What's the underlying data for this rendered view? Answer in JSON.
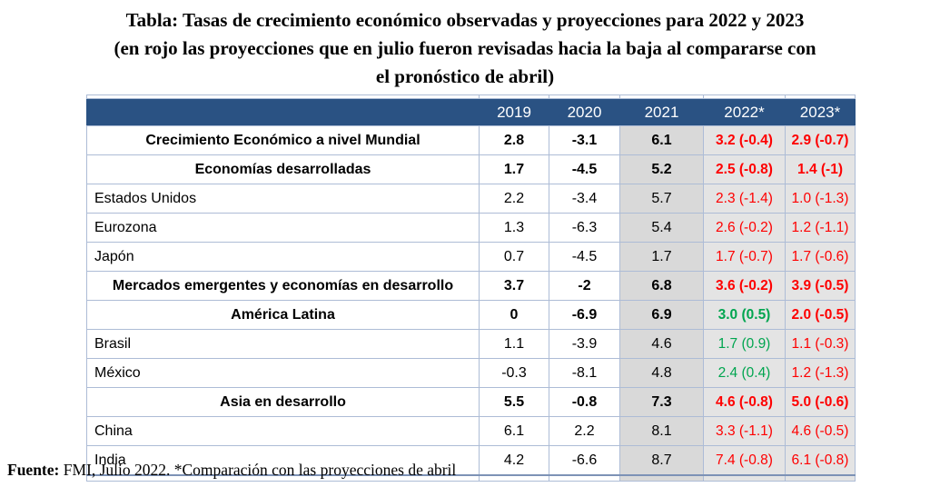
{
  "chart_data": {
    "type": "table",
    "title": "Tabla: Tasas de crecimiento económico observadas y proyecciones para 2022 y 2023 (en rojo las proyecciones que en julio fueron revisadas hacia la baja al compararse con el pronóstico de abril)",
    "title_lines": [
      "Tabla: Tasas de crecimiento económico observadas y proyecciones para 2022 y 2023",
      "(en rojo las proyecciones que en julio fueron revisadas hacia la baja al compararse con",
      "el pronóstico de abril)"
    ],
    "columns": [
      "",
      "2019",
      "2020",
      "2021",
      "2022*",
      "2023*"
    ],
    "rows": [
      {
        "label": "Crecimiento Económico a nivel Mundial",
        "emphasis": true,
        "values": [
          "2.8",
          "-3.1",
          "6.1",
          "3.2 (-0.4)",
          "2.9 (-0.7)"
        ],
        "proj_colors": [
          "red",
          "red"
        ]
      },
      {
        "label": "Economías desarrolladas",
        "emphasis": true,
        "values": [
          "1.7",
          "-4.5",
          "5.2",
          "2.5 (-0.8)",
          "1.4 (-1)"
        ],
        "proj_colors": [
          "red",
          "red"
        ]
      },
      {
        "label": "Estados Unidos",
        "emphasis": false,
        "values": [
          "2.2",
          "-3.4",
          "5.7",
          "2.3 (-1.4)",
          "1.0 (-1.3)"
        ],
        "proj_colors": [
          "red",
          "red"
        ]
      },
      {
        "label": "Eurozona",
        "emphasis": false,
        "values": [
          "1.3",
          "-6.3",
          "5.4",
          "2.6 (-0.2)",
          "1.2 (-1.1)"
        ],
        "proj_colors": [
          "red",
          "red"
        ]
      },
      {
        "label": "Japón",
        "emphasis": false,
        "values": [
          "0.7",
          "-4.5",
          "1.7",
          "1.7 (-0.7)",
          "1.7 (-0.6)"
        ],
        "proj_colors": [
          "red",
          "red"
        ]
      },
      {
        "label": "Mercados emergentes y economías en desarrollo",
        "emphasis": true,
        "values": [
          "3.7",
          "-2",
          "6.8",
          "3.6 (-0.2)",
          "3.9 (-0.5)"
        ],
        "proj_colors": [
          "red",
          "red"
        ]
      },
      {
        "label": "América Latina",
        "emphasis": true,
        "values": [
          "0",
          "-6.9",
          "6.9",
          "3.0 (0.5)",
          "2.0 (-0.5)"
        ],
        "proj_colors": [
          "green",
          "red"
        ]
      },
      {
        "label": "Brasil",
        "emphasis": false,
        "values": [
          "1.1",
          "-3.9",
          "4.6",
          "1.7 (0.9)",
          "1.1 (-0.3)"
        ],
        "proj_colors": [
          "green",
          "red"
        ]
      },
      {
        "label": "México",
        "emphasis": false,
        "values": [
          "-0.3",
          "-8.1",
          "4.8",
          "2.4 (0.4)",
          "1.2 (-1.3)"
        ],
        "proj_colors": [
          "green",
          "red"
        ]
      },
      {
        "label": "Asia en desarrollo",
        "emphasis": true,
        "values": [
          "5.5",
          "-0.8",
          "7.3",
          "4.6 (-0.8)",
          "5.0 (-0.6)"
        ],
        "proj_colors": [
          "red",
          "red"
        ]
      },
      {
        "label": "China",
        "emphasis": false,
        "values": [
          "6.1",
          "2.2",
          "8.1",
          "3.3 (-1.1)",
          "4.6 (-0.5)"
        ],
        "proj_colors": [
          "red",
          "red"
        ]
      },
      {
        "label": "India",
        "emphasis": false,
        "values": [
          "4.2",
          "-6.6",
          "8.7",
          "7.4 (-0.8)",
          "6.1 (-0.8)"
        ],
        "proj_colors": [
          "red",
          "red"
        ]
      }
    ],
    "source_label": "Fuente:",
    "source_text": " FMI, Julio 2022. *Comparación con las proyecciones de abril"
  },
  "colors": {
    "header_bg": "#2a5283",
    "header_text": "#ffffff",
    "col_2021_bg": "#d9d9d9",
    "col_projection_bg": "#e4e4e4",
    "downgraded_projection_red": "#fe0000",
    "upgraded_projection_green": "#00a54f",
    "grid_border": "#adbcd6"
  }
}
